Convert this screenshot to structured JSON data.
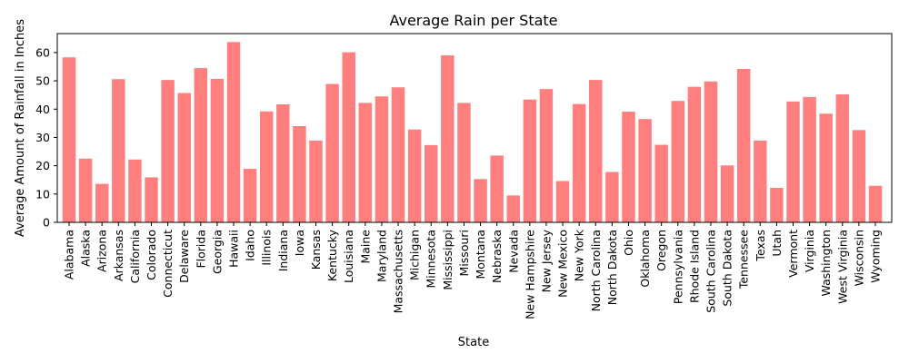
{
  "chart_data": {
    "type": "bar",
    "title": "Average Rain per State",
    "xlabel": "State",
    "ylabel": "Average Amount of Rainfall in Inches",
    "ylim": [
      0,
      66.7
    ],
    "yticks": [
      0,
      10,
      20,
      30,
      40,
      50,
      60
    ],
    "grid": false,
    "bar_color": "#ff7f7f",
    "categories": [
      "Alabama",
      "Alaska",
      "Arizona",
      "Arkansas",
      "California",
      "Colorado",
      "Connecticut",
      "Delaware",
      "Florida",
      "Georgia",
      "Hawaii",
      "Idaho",
      "Illinois",
      "Indiana",
      "Iowa",
      "Kansas",
      "Kentucky",
      "Louisiana",
      "Maine",
      "Maryland",
      "Massachusetts",
      "Michigan",
      "Minnesota",
      "Mississippi",
      "Missouri",
      "Montana",
      "Nebraska",
      "Nevada",
      "New Hampshire",
      "New Jersey",
      "New Mexico",
      "New York",
      "North Carolina",
      "North Dakota",
      "Ohio",
      "Oklahoma",
      "Oregon",
      "Pennsylvania",
      "Rhode Island",
      "South Carolina",
      "South Dakota",
      "Tennessee",
      "Texas",
      "Utah",
      "Vermont",
      "Virginia",
      "Washington",
      "West Virginia",
      "Wisconsin",
      "Wyoming"
    ],
    "values": [
      58.3,
      22.5,
      13.6,
      50.6,
      22.2,
      15.9,
      50.3,
      45.7,
      54.5,
      50.7,
      63.7,
      18.9,
      39.2,
      41.7,
      34.0,
      28.9,
      48.9,
      60.1,
      42.2,
      44.5,
      47.7,
      32.8,
      27.3,
      59.0,
      42.2,
      15.3,
      23.6,
      9.5,
      43.4,
      47.1,
      14.6,
      41.8,
      50.3,
      17.8,
      39.1,
      36.5,
      27.4,
      42.9,
      47.9,
      49.8,
      20.1,
      54.2,
      28.9,
      12.2,
      42.7,
      44.3,
      38.4,
      45.2,
      32.6,
      12.9
    ]
  }
}
